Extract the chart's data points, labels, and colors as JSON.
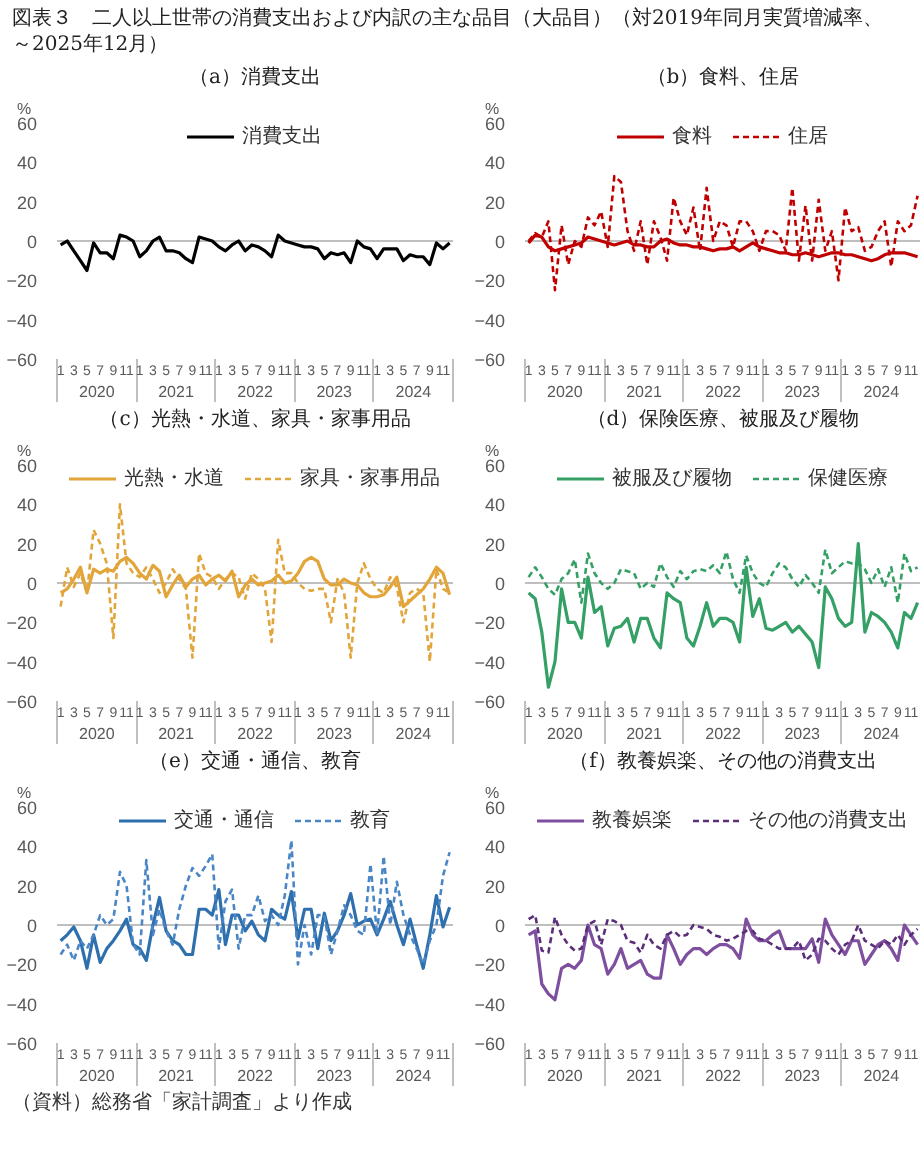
{
  "chart_data": [
    {
      "type": "line",
      "title": "図表３　二人以上世帯の消費支出および内訳の主な品目（大品目）（対2019年同月実質増減率、～2025年12月）",
      "subtitle": "（a）消費支出",
      "ylabel": "%",
      "legend": "top",
      "x": [
        "2020-01",
        "2020-02",
        "2020-03",
        "2020-04",
        "2020-05",
        "2020-06",
        "2020-07",
        "2020-08",
        "2020-09",
        "2020-10",
        "2020-11",
        "2020-12",
        "2021-01",
        "2021-02",
        "2021-03",
        "2021-04",
        "2021-05",
        "2021-06",
        "2021-07",
        "2021-08",
        "2021-09",
        "2021-10",
        "2021-11",
        "2021-12",
        "2022-01",
        "2022-02",
        "2022-03",
        "2022-04",
        "2022-05",
        "2022-06",
        "2022-07",
        "2022-08",
        "2022-09",
        "2022-10",
        "2022-11",
        "2022-12",
        "2023-01",
        "2023-02",
        "2023-03",
        "2023-04",
        "2023-05",
        "2023-06",
        "2023-07",
        "2023-08",
        "2023-09",
        "2023-10",
        "2023-11",
        "2023-12",
        "2024-01",
        "2024-02",
        "2024-03",
        "2024-04",
        "2024-05",
        "2024-06",
        "2024-07",
        "2024-08",
        "2024-09",
        "2024-10",
        "2024-11",
        "2024-12"
      ],
      "xlim": [
        "2019-12-15",
        "2024-12-17"
      ],
      "xticks": [
        {
          "value": "2020-01",
          "label": "1"
        },
        {
          "value": "2020-03",
          "label": "3"
        },
        {
          "value": "2020-05",
          "label": "5"
        },
        {
          "value": "2020-07",
          "label": "7"
        },
        {
          "value": "2020-09",
          "label": "9"
        },
        {
          "value": "2020-11",
          "label": "11"
        },
        {
          "value": "2021-01",
          "label": "1"
        },
        {
          "value": "2021-03",
          "label": "3"
        },
        {
          "value": "2021-05",
          "label": "5"
        },
        {
          "value": "2021-07",
          "label": "7"
        },
        {
          "value": "2021-09",
          "label": "9"
        },
        {
          "value": "2021-11",
          "label": "11"
        },
        {
          "value": "2022-01",
          "label": "1"
        },
        {
          "value": "2022-03",
          "label": "3"
        },
        {
          "value": "2022-05",
          "label": "5"
        },
        {
          "value": "2022-07",
          "label": "7"
        },
        {
          "value": "2022-09",
          "label": "9"
        },
        {
          "value": "2022-11",
          "label": "11"
        },
        {
          "value": "2023-01",
          "label": "1"
        },
        {
          "value": "2023-03",
          "label": "3"
        },
        {
          "value": "2023-05",
          "label": "5"
        },
        {
          "value": "2023-07",
          "label": "7"
        },
        {
          "value": "2023-09",
          "label": "9"
        },
        {
          "value": "2023-11",
          "label": "11"
        },
        {
          "value": "2024-01",
          "label": "1"
        },
        {
          "value": "2024-03",
          "label": "3"
        },
        {
          "value": "2024-05",
          "label": "5"
        },
        {
          "value": "2024-07",
          "label": "7"
        },
        {
          "value": "2024-09",
          "label": "9"
        },
        {
          "value": "2024-11",
          "label": "11"
        }
      ],
      "x2lim": [
        "2019-12-15",
        "2024-12-17"
      ],
      "x2ticks": [
        {
          "value": "2020-06-16",
          "label": "2020"
        },
        {
          "value": "2021-06-16",
          "label": "2021"
        },
        {
          "value": "2022-06-16",
          "label": "2022"
        },
        {
          "value": "2023-06-16",
          "label": "2023"
        },
        {
          "value": "2024-06-16",
          "label": "2024"
        }
      ],
      "ylim": [
        -60,
        60
      ],
      "yticks": [
        -60,
        -40,
        -20,
        0,
        20,
        40,
        60
      ],
      "ref_lines": [
        {
          "axis": "y",
          "value": 0,
          "color": "#bfbfbf"
        }
      ],
      "series": [
        {
          "name": "消費支出",
          "color": "#000000",
          "line_style": "solid",
          "values": [
            -2,
            0,
            -5,
            -10,
            -15,
            -1,
            -6,
            -6,
            -9,
            3,
            2,
            0,
            -8,
            -5,
            0,
            2,
            -5,
            -5,
            -6,
            -9,
            -11,
            2,
            1,
            0,
            -3,
            -5,
            -2,
            0,
            -5,
            -2,
            -3,
            -5,
            -8,
            3,
            0,
            -1,
            -2,
            -3,
            -3,
            -4,
            -9,
            -6,
            -7,
            -6,
            -11,
            0,
            -3,
            -4,
            -9,
            -4,
            -4,
            -4,
            -10,
            -7,
            -8,
            -8,
            -12,
            -1,
            -4,
            -1
          ]
        }
      ]
    },
    {
      "type": "line",
      "subtitle": "（b）食料、住居",
      "ylabel": "%",
      "legend": "top",
      "x": [
        "2020-01",
        "2020-02",
        "2020-03",
        "2020-04",
        "2020-05",
        "2020-06",
        "2020-07",
        "2020-08",
        "2020-09",
        "2020-10",
        "2020-11",
        "2020-12",
        "2021-01",
        "2021-02",
        "2021-03",
        "2021-04",
        "2021-05",
        "2021-06",
        "2021-07",
        "2021-08",
        "2021-09",
        "2021-10",
        "2021-11",
        "2021-12",
        "2022-01",
        "2022-02",
        "2022-03",
        "2022-04",
        "2022-05",
        "2022-06",
        "2022-07",
        "2022-08",
        "2022-09",
        "2022-10",
        "2022-11",
        "2022-12",
        "2023-01",
        "2023-02",
        "2023-03",
        "2023-04",
        "2023-05",
        "2023-06",
        "2023-07",
        "2023-08",
        "2023-09",
        "2023-10",
        "2023-11",
        "2023-12",
        "2024-01",
        "2024-02",
        "2024-03",
        "2024-04",
        "2024-05",
        "2024-06",
        "2024-07",
        "2024-08",
        "2024-09",
        "2024-10",
        "2024-11",
        "2024-12"
      ],
      "xlim": [
        "2019-12-15",
        "2024-12-17"
      ],
      "xticks": [
        {
          "value": "2020-01",
          "label": "1"
        },
        {
          "value": "2020-03",
          "label": "3"
        },
        {
          "value": "2020-05",
          "label": "5"
        },
        {
          "value": "2020-07",
          "label": "7"
        },
        {
          "value": "2020-09",
          "label": "9"
        },
        {
          "value": "2020-11",
          "label": "11"
        },
        {
          "value": "2021-01",
          "label": "1"
        },
        {
          "value": "2021-03",
          "label": "3"
        },
        {
          "value": "2021-05",
          "label": "5"
        },
        {
          "value": "2021-07",
          "label": "7"
        },
        {
          "value": "2021-09",
          "label": "9"
        },
        {
          "value": "2021-11",
          "label": "11"
        },
        {
          "value": "2022-01",
          "label": "1"
        },
        {
          "value": "2022-03",
          "label": "3"
        },
        {
          "value": "2022-05",
          "label": "5"
        },
        {
          "value": "2022-07",
          "label": "7"
        },
        {
          "value": "2022-09",
          "label": "9"
        },
        {
          "value": "2022-11",
          "label": "11"
        },
        {
          "value": "2023-01",
          "label": "1"
        },
        {
          "value": "2023-03",
          "label": "3"
        },
        {
          "value": "2023-05",
          "label": "5"
        },
        {
          "value": "2023-07",
          "label": "7"
        },
        {
          "value": "2023-09",
          "label": "9"
        },
        {
          "value": "2023-11",
          "label": "11"
        },
        {
          "value": "2024-01",
          "label": "1"
        },
        {
          "value": "2024-03",
          "label": "3"
        },
        {
          "value": "2024-05",
          "label": "5"
        },
        {
          "value": "2024-07",
          "label": "7"
        },
        {
          "value": "2024-09",
          "label": "9"
        },
        {
          "value": "2024-11",
          "label": "11"
        }
      ],
      "x2lim": [
        "2019-12-15",
        "2024-12-17"
      ],
      "x2ticks": [
        {
          "value": "2020-06-16",
          "label": "2020"
        },
        {
          "value": "2021-06-16",
          "label": "2021"
        },
        {
          "value": "2022-06-16",
          "label": "2022"
        },
        {
          "value": "2023-06-16",
          "label": "2023"
        },
        {
          "value": "2024-06-16",
          "label": "2024"
        }
      ],
      "ylim": [
        -60,
        60
      ],
      "yticks": [
        -60,
        -40,
        -20,
        0,
        20,
        40,
        60
      ],
      "ref_lines": [
        {
          "axis": "y",
          "value": 0,
          "color": "#bfbfbf"
        }
      ],
      "series": [
        {
          "name": "食料",
          "color": "#c00000",
          "line_style": "solid",
          "values": [
            -1,
            3,
            2,
            -3,
            -5,
            -4,
            -3,
            -2,
            -1,
            2,
            1,
            0,
            -1,
            -2,
            -1,
            0,
            -2,
            -2,
            -3,
            -3,
            0,
            1,
            -1,
            -2,
            -2,
            -3,
            -3,
            -4,
            -5,
            -4,
            -4,
            -3,
            -5,
            -3,
            -1,
            -3,
            -4,
            -5,
            -6,
            -6,
            -7,
            -7,
            -6,
            -7,
            -8,
            -7,
            -6,
            -6,
            -7,
            -7,
            -8,
            -9,
            -10,
            -9,
            -7,
            -6,
            -6,
            -6,
            -7,
            -8
          ]
        },
        {
          "name": "住居",
          "color": "#c00000",
          "line_style": "dashed",
          "values": [
            0,
            4,
            2,
            10,
            -25,
            8,
            -12,
            0,
            -3,
            12,
            8,
            15,
            -3,
            33,
            30,
            5,
            -5,
            10,
            -12,
            10,
            2,
            -10,
            22,
            10,
            3,
            17,
            -5,
            27,
            0,
            10,
            8,
            -3,
            10,
            10,
            5,
            -5,
            5,
            5,
            3,
            -5,
            27,
            -10,
            18,
            -10,
            21,
            -5,
            5,
            -20,
            17,
            5,
            7,
            -5,
            -3,
            5,
            10,
            -13,
            10,
            5,
            8,
            23
          ]
        }
      ]
    },
    {
      "type": "line",
      "subtitle": "（c）光熱・水道、家具・家事用品",
      "ylabel": "%",
      "legend": "top",
      "x": [
        "2020-01",
        "2020-02",
        "2020-03",
        "2020-04",
        "2020-05",
        "2020-06",
        "2020-07",
        "2020-08",
        "2020-09",
        "2020-10",
        "2020-11",
        "2020-12",
        "2021-01",
        "2021-02",
        "2021-03",
        "2021-04",
        "2021-05",
        "2021-06",
        "2021-07",
        "2021-08",
        "2021-09",
        "2021-10",
        "2021-11",
        "2021-12",
        "2022-01",
        "2022-02",
        "2022-03",
        "2022-04",
        "2022-05",
        "2022-06",
        "2022-07",
        "2022-08",
        "2022-09",
        "2022-10",
        "2022-11",
        "2022-12",
        "2023-01",
        "2023-02",
        "2023-03",
        "2023-04",
        "2023-05",
        "2023-06",
        "2023-07",
        "2023-08",
        "2023-09",
        "2023-10",
        "2023-11",
        "2023-12",
        "2024-01",
        "2024-02",
        "2024-03",
        "2024-04",
        "2024-05",
        "2024-06",
        "2024-07",
        "2024-08",
        "2024-09",
        "2024-10",
        "2024-11",
        "2024-12"
      ],
      "xlim": [
        "2019-12-15",
        "2024-12-17"
      ],
      "xticks": [
        {
          "value": "2020-01",
          "label": "1"
        },
        {
          "value": "2020-03",
          "label": "3"
        },
        {
          "value": "2020-05",
          "label": "5"
        },
        {
          "value": "2020-07",
          "label": "7"
        },
        {
          "value": "2020-09",
          "label": "9"
        },
        {
          "value": "2020-11",
          "label": "11"
        },
        {
          "value": "2021-01",
          "label": "1"
        },
        {
          "value": "2021-03",
          "label": "3"
        },
        {
          "value": "2021-05",
          "label": "5"
        },
        {
          "value": "2021-07",
          "label": "7"
        },
        {
          "value": "2021-09",
          "label": "9"
        },
        {
          "value": "2021-11",
          "label": "11"
        },
        {
          "value": "2022-01",
          "label": "1"
        },
        {
          "value": "2022-03",
          "label": "3"
        },
        {
          "value": "2022-05",
          "label": "5"
        },
        {
          "value": "2022-07",
          "label": "7"
        },
        {
          "value": "2022-09",
          "label": "9"
        },
        {
          "value": "2022-11",
          "label": "11"
        },
        {
          "value": "2023-01",
          "label": "1"
        },
        {
          "value": "2023-03",
          "label": "3"
        },
        {
          "value": "2023-05",
          "label": "5"
        },
        {
          "value": "2023-07",
          "label": "7"
        },
        {
          "value": "2023-09",
          "label": "9"
        },
        {
          "value": "2023-11",
          "label": "11"
        },
        {
          "value": "2024-01",
          "label": "1"
        },
        {
          "value": "2024-03",
          "label": "3"
        },
        {
          "value": "2024-05",
          "label": "5"
        },
        {
          "value": "2024-07",
          "label": "7"
        },
        {
          "value": "2024-09",
          "label": "9"
        },
        {
          "value": "2024-11",
          "label": "11"
        }
      ],
      "x2lim": [
        "2019-12-15",
        "2024-12-17"
      ],
      "x2ticks": [
        {
          "value": "2020-06-16",
          "label": "2020"
        },
        {
          "value": "2021-06-16",
          "label": "2021"
        },
        {
          "value": "2022-06-16",
          "label": "2022"
        },
        {
          "value": "2023-06-16",
          "label": "2023"
        },
        {
          "value": "2024-06-16",
          "label": "2024"
        }
      ],
      "ylim": [
        -60,
        60
      ],
      "yticks": [
        -60,
        -40,
        -20,
        0,
        20,
        40,
        60
      ],
      "ref_lines": [
        {
          "axis": "y",
          "value": 0,
          "color": "#bfbfbf"
        }
      ],
      "series": [
        {
          "name": "光熱・水道",
          "color": "#e2a53a",
          "line_style": "solid",
          "values": [
            -5,
            -3,
            2,
            8,
            -5,
            7,
            5,
            7,
            6,
            11,
            13,
            10,
            5,
            2,
            9,
            6,
            -7,
            -1,
            4,
            -2,
            2,
            4,
            -1,
            2,
            4,
            1,
            6,
            -7,
            -1,
            2,
            -1,
            0,
            1,
            4,
            0,
            1,
            5,
            11,
            13,
            11,
            2,
            -1,
            -1,
            2,
            0,
            -1,
            -5,
            -7,
            -7,
            -6,
            -2,
            3,
            -12,
            -9,
            -6,
            -3,
            2,
            8,
            5,
            -6
          ]
        },
        {
          "name": "家具・家事用品",
          "color": "#e2a53a",
          "line_style": "dashed",
          "values": [
            -12,
            8,
            -2,
            5,
            -5,
            27,
            20,
            10,
            -28,
            40,
            10,
            5,
            3,
            8,
            2,
            -5,
            0,
            7,
            2,
            -3,
            -38,
            15,
            5,
            3,
            -3,
            2,
            5,
            3,
            -8,
            5,
            2,
            -3,
            -30,
            22,
            5,
            5,
            0,
            -3,
            -4,
            -3,
            -3,
            -20,
            2,
            -5,
            -38,
            0,
            10,
            2,
            -3,
            -5,
            3,
            -2,
            -20,
            -5,
            -3,
            -5,
            -40,
            7,
            -3,
            -5
          ]
        }
      ]
    },
    {
      "type": "line",
      "subtitle": "（d）保険医療、被服及び履物",
      "ylabel": "%",
      "legend": "top",
      "x": [
        "2020-01",
        "2020-02",
        "2020-03",
        "2020-04",
        "2020-05",
        "2020-06",
        "2020-07",
        "2020-08",
        "2020-09",
        "2020-10",
        "2020-11",
        "2020-12",
        "2021-01",
        "2021-02",
        "2021-03",
        "2021-04",
        "2021-05",
        "2021-06",
        "2021-07",
        "2021-08",
        "2021-09",
        "2021-10",
        "2021-11",
        "2021-12",
        "2022-01",
        "2022-02",
        "2022-03",
        "2022-04",
        "2022-05",
        "2022-06",
        "2022-07",
        "2022-08",
        "2022-09",
        "2022-10",
        "2022-11",
        "2022-12",
        "2023-01",
        "2023-02",
        "2023-03",
        "2023-04",
        "2023-05",
        "2023-06",
        "2023-07",
        "2023-08",
        "2023-09",
        "2023-10",
        "2023-11",
        "2023-12",
        "2024-01",
        "2024-02",
        "2024-03",
        "2024-04",
        "2024-05",
        "2024-06",
        "2024-07",
        "2024-08",
        "2024-09",
        "2024-10",
        "2024-11",
        "2024-12"
      ],
      "xlim": [
        "2019-12-15",
        "2024-12-17"
      ],
      "xticks": [
        {
          "value": "2020-01",
          "label": "1"
        },
        {
          "value": "2020-03",
          "label": "3"
        },
        {
          "value": "2020-05",
          "label": "5"
        },
        {
          "value": "2020-07",
          "label": "7"
        },
        {
          "value": "2020-09",
          "label": "9"
        },
        {
          "value": "2020-11",
          "label": "11"
        },
        {
          "value": "2021-01",
          "label": "1"
        },
        {
          "value": "2021-03",
          "label": "3"
        },
        {
          "value": "2021-05",
          "label": "5"
        },
        {
          "value": "2021-07",
          "label": "7"
        },
        {
          "value": "2021-09",
          "label": "9"
        },
        {
          "value": "2021-11",
          "label": "11"
        },
        {
          "value": "2022-01",
          "label": "1"
        },
        {
          "value": "2022-03",
          "label": "3"
        },
        {
          "value": "2022-05",
          "label": "5"
        },
        {
          "value": "2022-07",
          "label": "7"
        },
        {
          "value": "2022-09",
          "label": "9"
        },
        {
          "value": "2022-11",
          "label": "11"
        },
        {
          "value": "2023-01",
          "label": "1"
        },
        {
          "value": "2023-03",
          "label": "3"
        },
        {
          "value": "2023-05",
          "label": "5"
        },
        {
          "value": "2023-07",
          "label": "7"
        },
        {
          "value": "2023-09",
          "label": "9"
        },
        {
          "value": "2023-11",
          "label": "11"
        },
        {
          "value": "2024-01",
          "label": "1"
        },
        {
          "value": "2024-03",
          "label": "3"
        },
        {
          "value": "2024-05",
          "label": "5"
        },
        {
          "value": "2024-07",
          "label": "7"
        },
        {
          "value": "2024-09",
          "label": "9"
        },
        {
          "value": "2024-11",
          "label": "11"
        }
      ],
      "x2lim": [
        "2019-12-15",
        "2024-12-17"
      ],
      "x2ticks": [
        {
          "value": "2020-06-16",
          "label": "2020"
        },
        {
          "value": "2021-06-16",
          "label": "2021"
        },
        {
          "value": "2022-06-16",
          "label": "2022"
        },
        {
          "value": "2023-06-16",
          "label": "2023"
        },
        {
          "value": "2024-06-16",
          "label": "2024"
        }
      ],
      "ylim": [
        -60,
        60
      ],
      "yticks": [
        -60,
        -40,
        -20,
        0,
        20,
        40,
        60
      ],
      "ref_lines": [
        {
          "axis": "y",
          "value": 0,
          "color": "#bfbfbf"
        }
      ],
      "series": [
        {
          "name": "被服及び履物",
          "color": "#34a065",
          "line_style": "solid",
          "values": [
            -5,
            -8,
            -25,
            -53,
            -40,
            -3,
            -20,
            -20,
            -28,
            3,
            -15,
            -12,
            -32,
            -23,
            -22,
            -18,
            -30,
            -18,
            -18,
            -28,
            -33,
            -5,
            -8,
            -10,
            -28,
            -32,
            -22,
            -10,
            -22,
            -18,
            -18,
            -20,
            -30,
            8,
            -17,
            -8,
            -23,
            -24,
            -22,
            -20,
            -25,
            -22,
            -26,
            -30,
            -43,
            -2,
            -8,
            -18,
            -22,
            -20,
            20,
            -25,
            -15,
            -17,
            -20,
            -25,
            -33,
            -15,
            -18,
            -10
          ]
        },
        {
          "name": "保健医療",
          "color": "#34a065",
          "line_style": "dashed",
          "values": [
            3,
            8,
            3,
            -3,
            -6,
            2,
            5,
            12,
            -10,
            15,
            5,
            0,
            -3,
            0,
            7,
            6,
            5,
            -3,
            0,
            -2,
            10,
            3,
            -2,
            6,
            2,
            6,
            7,
            6,
            9,
            5,
            16,
            2,
            -5,
            14,
            5,
            0,
            -2,
            5,
            10,
            8,
            2,
            -2,
            4,
            0,
            -5,
            17,
            5,
            8,
            11,
            10,
            10,
            7,
            0,
            7,
            -2,
            8,
            -10,
            15,
            6,
            8
          ]
        }
      ]
    },
    {
      "type": "line",
      "subtitle": "（e）交通・通信、教育",
      "ylabel": "%",
      "legend": "top",
      "x": [
        "2020-01",
        "2020-02",
        "2020-03",
        "2020-04",
        "2020-05",
        "2020-06",
        "2020-07",
        "2020-08",
        "2020-09",
        "2020-10",
        "2020-11",
        "2020-12",
        "2021-01",
        "2021-02",
        "2021-03",
        "2021-04",
        "2021-05",
        "2021-06",
        "2021-07",
        "2021-08",
        "2021-09",
        "2021-10",
        "2021-11",
        "2021-12",
        "2022-01",
        "2022-02",
        "2022-03",
        "2022-04",
        "2022-05",
        "2022-06",
        "2022-07",
        "2022-08",
        "2022-09",
        "2022-10",
        "2022-11",
        "2022-12",
        "2023-01",
        "2023-02",
        "2023-03",
        "2023-04",
        "2023-05",
        "2023-06",
        "2023-07",
        "2023-08",
        "2023-09",
        "2023-10",
        "2023-11",
        "2023-12",
        "2024-01",
        "2024-02",
        "2024-03",
        "2024-04",
        "2024-05",
        "2024-06",
        "2024-07",
        "2024-08",
        "2024-09",
        "2024-10",
        "2024-11",
        "2024-12"
      ],
      "xlim": [
        "2019-12-15",
        "2024-12-17"
      ],
      "xticks": [
        {
          "value": "2020-01",
          "label": "1"
        },
        {
          "value": "2020-03",
          "label": "3"
        },
        {
          "value": "2020-05",
          "label": "5"
        },
        {
          "value": "2020-07",
          "label": "7"
        },
        {
          "value": "2020-09",
          "label": "9"
        },
        {
          "value": "2020-11",
          "label": "11"
        },
        {
          "value": "2021-01",
          "label": "1"
        },
        {
          "value": "2021-03",
          "label": "3"
        },
        {
          "value": "2021-05",
          "label": "5"
        },
        {
          "value": "2021-07",
          "label": "7"
        },
        {
          "value": "2021-09",
          "label": "9"
        },
        {
          "value": "2021-11",
          "label": "11"
        },
        {
          "value": "2022-01",
          "label": "1"
        },
        {
          "value": "2022-03",
          "label": "3"
        },
        {
          "value": "2022-05",
          "label": "5"
        },
        {
          "value": "2022-07",
          "label": "7"
        },
        {
          "value": "2022-09",
          "label": "9"
        },
        {
          "value": "2022-11",
          "label": "11"
        },
        {
          "value": "2023-01",
          "label": "1"
        },
        {
          "value": "2023-03",
          "label": "3"
        },
        {
          "value": "2023-05",
          "label": "5"
        },
        {
          "value": "2023-07",
          "label": "7"
        },
        {
          "value": "2023-09",
          "label": "9"
        },
        {
          "value": "2023-11",
          "label": "11"
        },
        {
          "value": "2024-01",
          "label": "1"
        },
        {
          "value": "2024-03",
          "label": "3"
        },
        {
          "value": "2024-05",
          "label": "5"
        },
        {
          "value": "2024-07",
          "label": "7"
        },
        {
          "value": "2024-09",
          "label": "9"
        },
        {
          "value": "2024-11",
          "label": "11"
        }
      ],
      "x2lim": [
        "2019-12-15",
        "2024-12-17"
      ],
      "x2ticks": [
        {
          "value": "2020-06-16",
          "label": "2020"
        },
        {
          "value": "2021-06-16",
          "label": "2021"
        },
        {
          "value": "2022-06-16",
          "label": "2022"
        },
        {
          "value": "2023-06-16",
          "label": "2023"
        },
        {
          "value": "2024-06-16",
          "label": "2024"
        }
      ],
      "ylim": [
        -60,
        60
      ],
      "yticks": [
        -60,
        -40,
        -20,
        0,
        20,
        40,
        60
      ],
      "ref_lines": [
        {
          "axis": "y",
          "value": 0,
          "color": "#bfbfbf"
        }
      ],
      "annotations": [
        "（資料）総務省「家計調査」より作成"
      ],
      "series": [
        {
          "name": "交通・通信",
          "color": "#2e6fae",
          "line_style": "solid",
          "values": [
            -8,
            -5,
            -1,
            -8,
            -22,
            -5,
            -19,
            -12,
            -8,
            -3,
            3,
            -10,
            -12,
            -18,
            0,
            14,
            -3,
            -8,
            -10,
            -15,
            -15,
            8,
            8,
            5,
            18,
            -10,
            5,
            5,
            -3,
            2,
            -5,
            -8,
            8,
            5,
            3,
            17,
            -7,
            8,
            8,
            -12,
            6,
            -8,
            -3,
            5,
            16,
            0,
            2,
            3,
            -5,
            3,
            12,
            0,
            -10,
            3,
            -10,
            -22,
            -5,
            15,
            -1,
            9
          ]
        },
        {
          "name": "教育",
          "color": "#4a86c5",
          "line_style": "dashed",
          "values": [
            -15,
            -10,
            -18,
            -8,
            -12,
            -5,
            5,
            0,
            3,
            27,
            20,
            -10,
            -15,
            33,
            -5,
            8,
            -3,
            -10,
            8,
            20,
            29,
            25,
            30,
            36,
            -12,
            12,
            18,
            -12,
            5,
            5,
            15,
            2,
            5,
            0,
            15,
            43,
            -20,
            0,
            -15,
            5,
            5,
            -15,
            -3,
            10,
            5,
            -3,
            -5,
            31,
            -5,
            35,
            0,
            22,
            5,
            -5,
            -12,
            -20,
            -8,
            0,
            25,
            37
          ]
        }
      ]
    },
    {
      "type": "line",
      "subtitle": "（f）教養娯楽、その他の消費支出",
      "ylabel": "%",
      "legend": "top",
      "x": [
        "2020-01",
        "2020-02",
        "2020-03",
        "2020-04",
        "2020-05",
        "2020-06",
        "2020-07",
        "2020-08",
        "2020-09",
        "2020-10",
        "2020-11",
        "2020-12",
        "2021-01",
        "2021-02",
        "2021-03",
        "2021-04",
        "2021-05",
        "2021-06",
        "2021-07",
        "2021-08",
        "2021-09",
        "2021-10",
        "2021-11",
        "2021-12",
        "2022-01",
        "2022-02",
        "2022-03",
        "2022-04",
        "2022-05",
        "2022-06",
        "2022-07",
        "2022-08",
        "2022-09",
        "2022-10",
        "2022-11",
        "2022-12",
        "2023-01",
        "2023-02",
        "2023-03",
        "2023-04",
        "2023-05",
        "2023-06",
        "2023-07",
        "2023-08",
        "2023-09",
        "2023-10",
        "2023-11",
        "2023-12",
        "2024-01",
        "2024-02",
        "2024-03",
        "2024-04",
        "2024-05",
        "2024-06",
        "2024-07",
        "2024-08",
        "2024-09",
        "2024-10",
        "2024-11",
        "2024-12"
      ],
      "xlim": [
        "2019-12-15",
        "2024-12-17"
      ],
      "xticks": [
        {
          "value": "2020-01",
          "label": "1"
        },
        {
          "value": "2020-03",
          "label": "3"
        },
        {
          "value": "2020-05",
          "label": "5"
        },
        {
          "value": "2020-07",
          "label": "7"
        },
        {
          "value": "2020-09",
          "label": "9"
        },
        {
          "value": "2020-11",
          "label": "11"
        },
        {
          "value": "2021-01",
          "label": "1"
        },
        {
          "value": "2021-03",
          "label": "3"
        },
        {
          "value": "2021-05",
          "label": "5"
        },
        {
          "value": "2021-07",
          "label": "7"
        },
        {
          "value": "2021-09",
          "label": "9"
        },
        {
          "value": "2021-11",
          "label": "11"
        },
        {
          "value": "2022-01",
          "label": "1"
        },
        {
          "value": "2022-03",
          "label": "3"
        },
        {
          "value": "2022-05",
          "label": "5"
        },
        {
          "value": "2022-07",
          "label": "7"
        },
        {
          "value": "2022-09",
          "label": "9"
        },
        {
          "value": "2022-11",
          "label": "11"
        },
        {
          "value": "2023-01",
          "label": "1"
        },
        {
          "value": "2023-03",
          "label": "3"
        },
        {
          "value": "2023-05",
          "label": "5"
        },
        {
          "value": "2023-07",
          "label": "7"
        },
        {
          "value": "2023-09",
          "label": "9"
        },
        {
          "value": "2023-11",
          "label": "11"
        },
        {
          "value": "2024-01",
          "label": "1"
        },
        {
          "value": "2024-03",
          "label": "3"
        },
        {
          "value": "2024-05",
          "label": "5"
        },
        {
          "value": "2024-07",
          "label": "7"
        },
        {
          "value": "2024-09",
          "label": "9"
        },
        {
          "value": "2024-11",
          "label": "11"
        }
      ],
      "x2lim": [
        "2019-12-15",
        "2024-12-17"
      ],
      "x2ticks": [
        {
          "value": "2020-06-16",
          "label": "2020"
        },
        {
          "value": "2021-06-16",
          "label": "2021"
        },
        {
          "value": "2022-06-16",
          "label": "2022"
        },
        {
          "value": "2023-06-16",
          "label": "2023"
        },
        {
          "value": "2024-06-16",
          "label": "2024"
        }
      ],
      "ylim": [
        -60,
        60
      ],
      "yticks": [
        -60,
        -40,
        -20,
        0,
        20,
        40,
        60
      ],
      "ref_lines": [
        {
          "axis": "y",
          "value": 0,
          "color": "#bfbfbf"
        }
      ],
      "series": [
        {
          "name": "教養娯楽",
          "color": "#7f4f9f",
          "line_style": "solid",
          "values": [
            -5,
            -3,
            -30,
            -35,
            -38,
            -22,
            -20,
            -22,
            -18,
            0,
            -10,
            -12,
            -25,
            -20,
            -12,
            -22,
            -20,
            -18,
            -25,
            -27,
            -27,
            -5,
            -12,
            -20,
            -15,
            -12,
            -12,
            -15,
            -12,
            -10,
            -10,
            -12,
            -17,
            3,
            -5,
            -8,
            -8,
            -5,
            -3,
            -12,
            -12,
            -12,
            -12,
            -7,
            -19,
            3,
            -5,
            -10,
            -15,
            -8,
            -8,
            -20,
            -15,
            -10,
            -8,
            -12,
            -18,
            0,
            -5,
            -10
          ]
        },
        {
          "name": "その他の消費支出",
          "color": "#5a2e78",
          "line_style": "dashed",
          "values": [
            3,
            5,
            -13,
            -14,
            4,
            -5,
            -10,
            -13,
            -12,
            0,
            2,
            -10,
            3,
            2,
            0,
            -8,
            -9,
            -14,
            -5,
            -10,
            -12,
            -5,
            -3,
            -6,
            -5,
            0,
            -1,
            -2,
            -5,
            -6,
            -8,
            -7,
            -5,
            -3,
            -3,
            -7,
            -8,
            -10,
            -12,
            -12,
            -12,
            -8,
            -18,
            -15,
            -7,
            -8,
            -12,
            -15,
            -10,
            -8,
            0,
            -8,
            -10,
            -12,
            -8,
            -10,
            -5,
            -10,
            -5,
            -2
          ]
        }
      ]
    }
  ]
}
